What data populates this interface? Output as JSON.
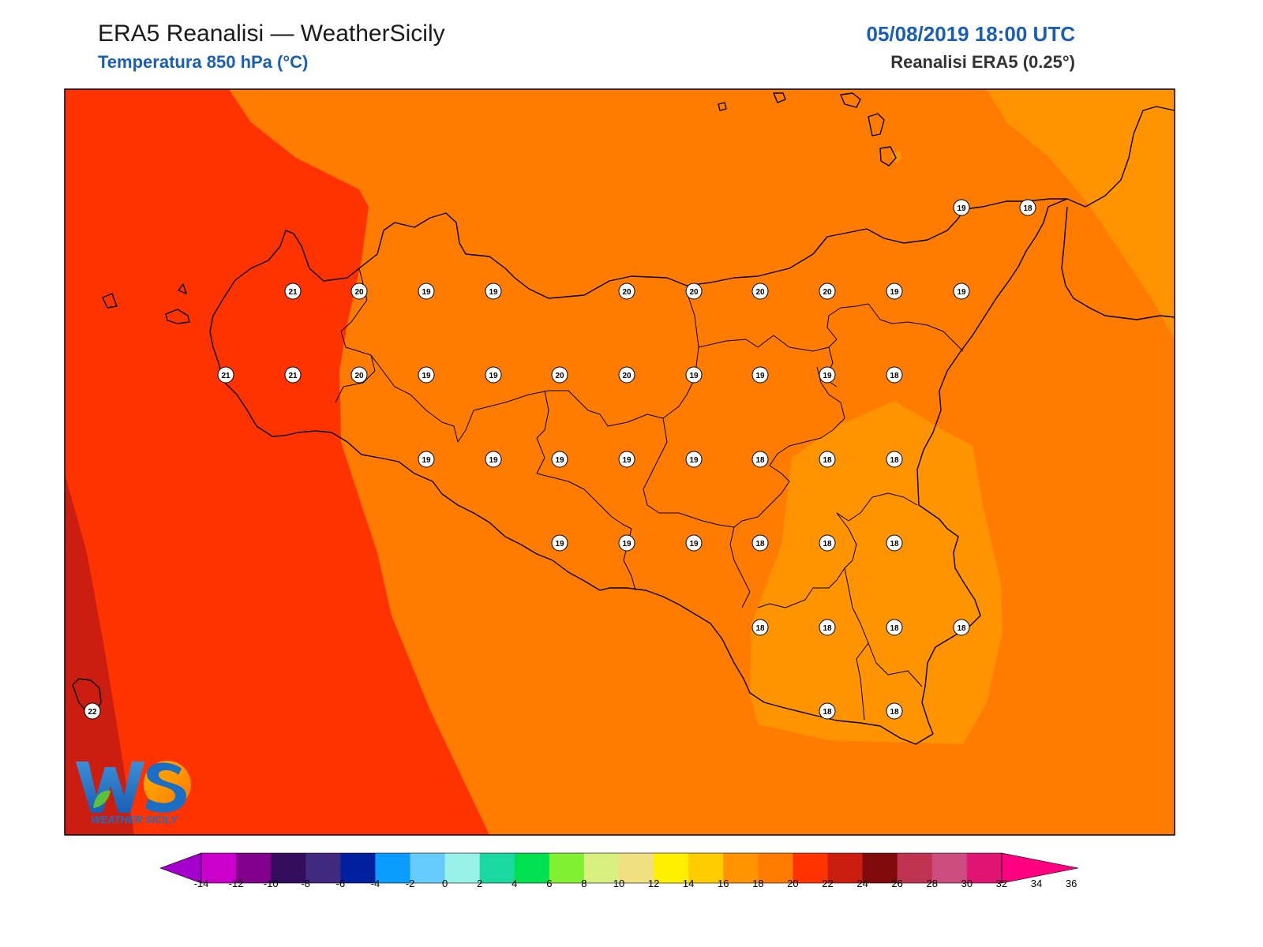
{
  "header": {
    "title": "ERA5 Reanalisi — WeatherSicily",
    "subtitle": "Temperatura 850 hPa (°C)",
    "datetime": "05/08/2019 18:00 UTC",
    "source": "Reanalisi ERA5 (0.25°)"
  },
  "logo": {
    "text": "WEATHER SICILY",
    "letters": "WS"
  },
  "colors": {
    "t22": "#ff3300",
    "t20": "#ff7c00",
    "t18": "#ff9400",
    "t24": "#cc1e10",
    "coast": "#000000"
  },
  "colorbar": {
    "colors": [
      "#a300cc",
      "#cc00cc",
      "#80008c",
      "#330d5c",
      "#402a80",
      "#0020a0",
      "#0a9cff",
      "#66ccff",
      "#99f2e8",
      "#1ad9a0",
      "#00e050",
      "#80f030",
      "#d9f080",
      "#f0e080",
      "#fff000",
      "#ffcc00",
      "#ff9400",
      "#ff7c00",
      "#ff3300",
      "#cc1e10",
      "#800a0a",
      "#bf3350",
      "#cc4c80",
      "#e01473",
      "#ff0080"
    ],
    "ticks": [
      "-14",
      "-12",
      "-10",
      "-8",
      "-6",
      "-4",
      "-2",
      "0",
      "2",
      "4",
      "6",
      "8",
      "10",
      "12",
      "14",
      "16",
      "18",
      "20",
      "22",
      "24",
      "26",
      "28",
      "30",
      "32",
      "34",
      "36"
    ]
  },
  "stations": [
    {
      "v": "19",
      "c": 1218,
      "r": 263
    },
    {
      "v": "18",
      "c": 1302,
      "r": 263
    },
    {
      "v": "21",
      "c": 371,
      "r": 369
    },
    {
      "v": "20",
      "c": 455,
      "r": 369
    },
    {
      "v": "19",
      "c": 540,
      "r": 369
    },
    {
      "v": "19",
      "c": 625,
      "r": 369
    },
    {
      "v": "20",
      "c": 794,
      "r": 369
    },
    {
      "v": "20",
      "c": 879,
      "r": 369
    },
    {
      "v": "20",
      "c": 963,
      "r": 369
    },
    {
      "v": "20",
      "c": 1048,
      "r": 369
    },
    {
      "v": "19",
      "c": 1133,
      "r": 369
    },
    {
      "v": "19",
      "c": 1218,
      "r": 369
    },
    {
      "v": "21",
      "c": 286,
      "r": 475
    },
    {
      "v": "21",
      "c": 371,
      "r": 475
    },
    {
      "v": "20",
      "c": 455,
      "r": 475
    },
    {
      "v": "19",
      "c": 540,
      "r": 475
    },
    {
      "v": "19",
      "c": 625,
      "r": 475
    },
    {
      "v": "20",
      "c": 709,
      "r": 475
    },
    {
      "v": "20",
      "c": 794,
      "r": 475
    },
    {
      "v": "19",
      "c": 879,
      "r": 475
    },
    {
      "v": "19",
      "c": 963,
      "r": 475
    },
    {
      "v": "19",
      "c": 1048,
      "r": 475
    },
    {
      "v": "18",
      "c": 1133,
      "r": 475
    },
    {
      "v": "19",
      "c": 540,
      "r": 582
    },
    {
      "v": "19",
      "c": 625,
      "r": 582
    },
    {
      "v": "19",
      "c": 709,
      "r": 582
    },
    {
      "v": "19",
      "c": 794,
      "r": 582
    },
    {
      "v": "19",
      "c": 879,
      "r": 582
    },
    {
      "v": "18",
      "c": 963,
      "r": 582
    },
    {
      "v": "18",
      "c": 1048,
      "r": 582
    },
    {
      "v": "18",
      "c": 1133,
      "r": 582
    },
    {
      "v": "19",
      "c": 709,
      "r": 688
    },
    {
      "v": "19",
      "c": 794,
      "r": 688
    },
    {
      "v": "19",
      "c": 879,
      "r": 688
    },
    {
      "v": "18",
      "c": 963,
      "r": 688
    },
    {
      "v": "18",
      "c": 1048,
      "r": 688
    },
    {
      "v": "18",
      "c": 1133,
      "r": 688
    },
    {
      "v": "18",
      "c": 963,
      "r": 795
    },
    {
      "v": "18",
      "c": 1048,
      "r": 795
    },
    {
      "v": "18",
      "c": 1133,
      "r": 795
    },
    {
      "v": "18",
      "c": 1218,
      "r": 795
    },
    {
      "v": "18",
      "c": 1048,
      "r": 901
    },
    {
      "v": "18",
      "c": 1133,
      "r": 901
    },
    {
      "v": "22",
      "c": 117,
      "r": 901
    }
  ]
}
